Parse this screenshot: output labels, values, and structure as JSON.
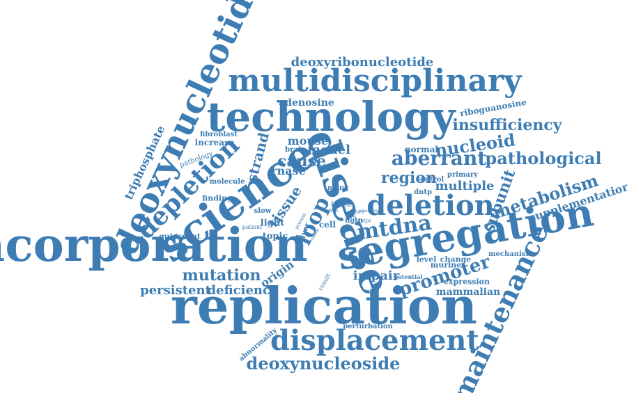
{
  "colors": {
    "word": "#3e7db3",
    "background": "#ffffff"
  },
  "words": [
    "incorporation",
    "replication",
    "segregation",
    "technology",
    "multidisciplinary",
    "science",
    "disease",
    "deoxynucleotide",
    "displacement",
    "depletion",
    "deletion",
    "maintenance",
    "deoxyribonucleotide",
    "aberrant",
    "pathological",
    "insufficiency",
    "region",
    "mtdna",
    "loop",
    "promoter",
    "deoxynucleoside",
    "metabolism",
    "mutation",
    "persistent",
    "deficiency",
    "cause",
    "model",
    "nucleoid",
    "multiple",
    "adenosine",
    "mouse",
    "strand",
    "rnase",
    "tissue",
    "subunit",
    "supplementation",
    "triphosphate",
    "riboguanosine",
    "origin",
    "impair",
    "mammalian",
    "increase",
    "fibroblast",
    "normal",
    "brain",
    "pathology",
    "molecule",
    "finding",
    "slow",
    "light",
    "topic",
    "quiescent",
    "patient",
    "cell",
    "liver",
    "primary",
    "control",
    "dntp",
    "dgtp",
    "dntps",
    "many",
    "loss",
    "study",
    "third",
    "new",
    "level",
    "change",
    "expression",
    "potential",
    "mechanism",
    "murine",
    "perturbation",
    "abnormality",
    "result",
    "protein",
    "stable",
    "single",
    "among",
    "two"
  ]
}
